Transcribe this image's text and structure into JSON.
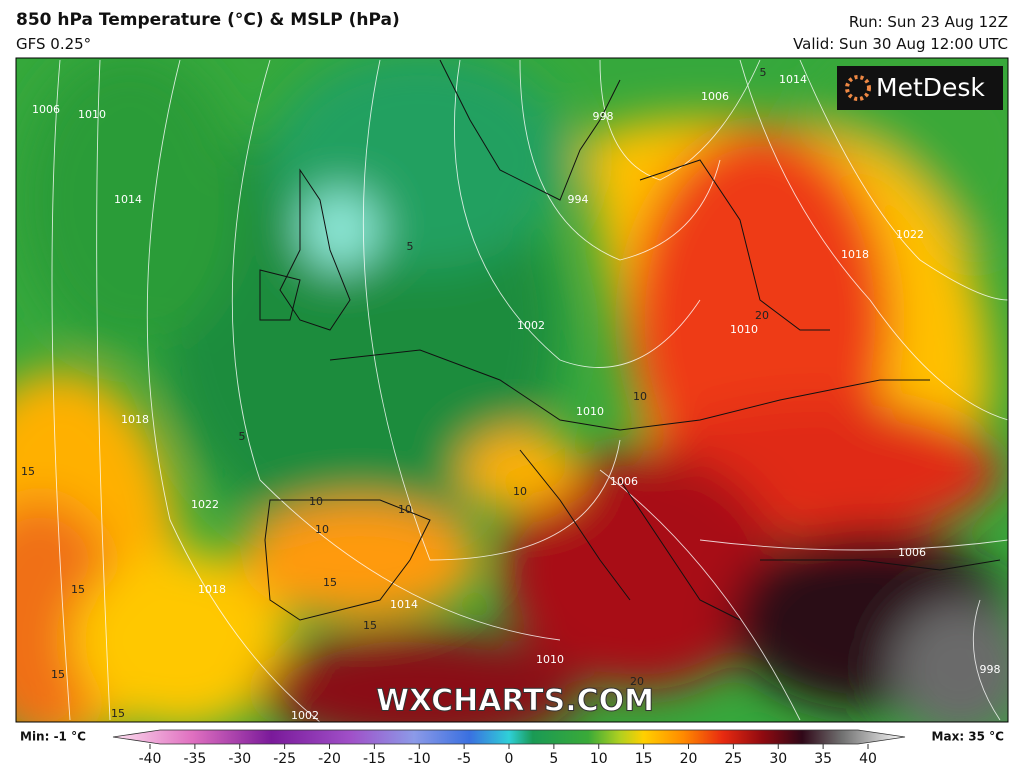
{
  "header": {
    "title": "850 hPa Temperature (°C) & MSLP (hPa)",
    "model": "GFS 0.25°",
    "run": "Run: Sun 23 Aug 12Z",
    "valid": "Valid: Sun 30 Aug 12:00 UTC"
  },
  "logo": "MetDesk",
  "watermark": "WXCHARTS.COM",
  "map": {
    "isobar_labels": [
      1006,
      1010,
      1014,
      1018,
      1022,
      1018,
      1014,
      1010,
      1006,
      1002,
      998,
      994,
      1010,
      1010,
      1018,
      1022,
      1006,
      998,
      1002,
      1006,
      1014
    ],
    "temperature_labels": [
      5,
      5,
      15,
      15,
      15,
      15,
      10,
      10,
      10,
      15,
      15,
      10,
      20,
      20,
      10,
      5
    ]
  },
  "legend": {
    "min_label": "Min: -1 °C",
    "max_label": "Max: 35 °C",
    "ticks": [
      -40,
      -35,
      -30,
      -25,
      -20,
      -15,
      -10,
      -5,
      0,
      5,
      10,
      15,
      20,
      25,
      30,
      35,
      40
    ]
  }
}
